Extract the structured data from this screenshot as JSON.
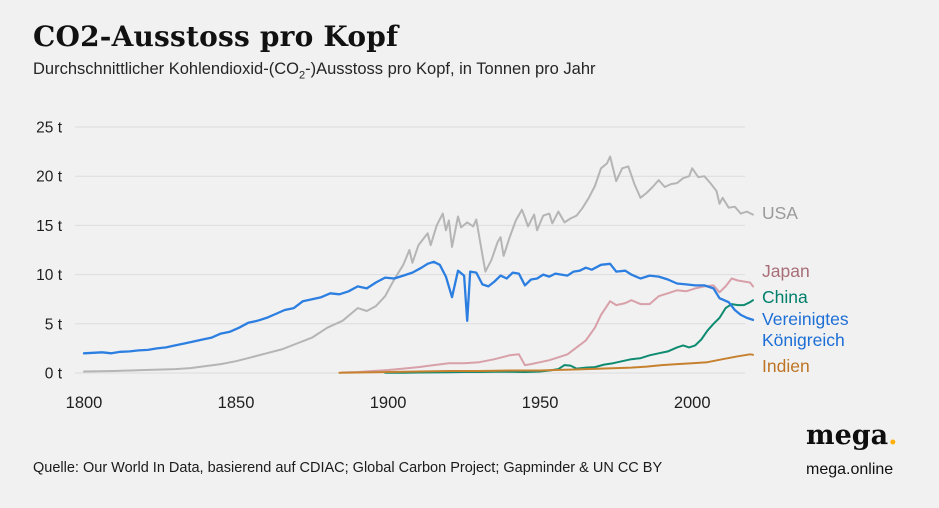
{
  "page": {
    "title": "CO2-Ausstoss pro Kopf",
    "subtitle_prefix": "Durchschnittlicher Kohlendioxid-(CO",
    "subtitle_sub": "2",
    "subtitle_suffix": "-)Ausstoss pro Kopf, in Tonnen pro Jahr",
    "source": "Quelle: Our World In Data, basierend auf CDIAC; Global Carbon Project; Gapminder & UN CC BY",
    "brand": {
      "logo_text": "mega",
      "logo_dot": ".",
      "site": "mega.online",
      "dot_color": "#ffb005"
    }
  },
  "chart_data": {
    "type": "line",
    "title": "CO2-Ausstoss pro Kopf",
    "subtitle": "Durchschnittlicher Kohlendioxid-(CO2-)Ausstoss pro Kopf, in Tonnen pro Jahr",
    "xlabel": "",
    "ylabel": "",
    "xlim": [
      1800,
      2020
    ],
    "ylim": [
      0,
      25
    ],
    "grid": true,
    "legend_position": "right",
    "background": "#f1f1f2",
    "grid_color": "#dcdcdc",
    "yticks": [
      {
        "value": 0,
        "label": "0 t"
      },
      {
        "value": 5,
        "label": "5 t"
      },
      {
        "value": 10,
        "label": "10 t"
      },
      {
        "value": 15,
        "label": "15 t"
      },
      {
        "value": 20,
        "label": "20 t"
      },
      {
        "value": 25,
        "label": "25 t"
      }
    ],
    "xticks": [
      {
        "value": 1800,
        "label": "1800"
      },
      {
        "value": 1850,
        "label": "1850"
      },
      {
        "value": 1900,
        "label": "1900"
      },
      {
        "value": 1950,
        "label": "1950"
      },
      {
        "value": 2000,
        "label": "2000"
      }
    ],
    "series": [
      {
        "name": "USA",
        "line_color": "#b5b5b5",
        "label_color": "#9a9a9a",
        "width": 2,
        "points": [
          [
            1800,
            0.15
          ],
          [
            1810,
            0.2
          ],
          [
            1820,
            0.3
          ],
          [
            1830,
            0.4
          ],
          [
            1835,
            0.5
          ],
          [
            1840,
            0.7
          ],
          [
            1845,
            0.9
          ],
          [
            1850,
            1.2
          ],
          [
            1855,
            1.6
          ],
          [
            1860,
            2.0
          ],
          [
            1865,
            2.4
          ],
          [
            1870,
            3.0
          ],
          [
            1875,
            3.6
          ],
          [
            1880,
            4.6
          ],
          [
            1885,
            5.3
          ],
          [
            1890,
            6.6
          ],
          [
            1893,
            6.3
          ],
          [
            1896,
            6.8
          ],
          [
            1899,
            7.8
          ],
          [
            1902,
            9.5
          ],
          [
            1905,
            11.0
          ],
          [
            1907,
            12.5
          ],
          [
            1908,
            11.2
          ],
          [
            1910,
            13.0
          ],
          [
            1913,
            14.2
          ],
          [
            1914,
            13.0
          ],
          [
            1916,
            15.0
          ],
          [
            1918,
            16.2
          ],
          [
            1919,
            14.5
          ],
          [
            1920,
            15.5
          ],
          [
            1921,
            12.8
          ],
          [
            1923,
            15.9
          ],
          [
            1924,
            14.8
          ],
          [
            1926,
            15.3
          ],
          [
            1928,
            14.9
          ],
          [
            1929,
            15.6
          ],
          [
            1931,
            12.0
          ],
          [
            1932,
            10.3
          ],
          [
            1934,
            11.5
          ],
          [
            1936,
            13.3
          ],
          [
            1937,
            13.8
          ],
          [
            1938,
            11.9
          ],
          [
            1940,
            13.8
          ],
          [
            1942,
            15.5
          ],
          [
            1944,
            16.6
          ],
          [
            1945,
            15.8
          ],
          [
            1946,
            14.9
          ],
          [
            1948,
            16.1
          ],
          [
            1949,
            14.5
          ],
          [
            1951,
            16.0
          ],
          [
            1953,
            16.2
          ],
          [
            1954,
            15.2
          ],
          [
            1956,
            16.4
          ],
          [
            1958,
            15.3
          ],
          [
            1960,
            15.7
          ],
          [
            1962,
            16.0
          ],
          [
            1964,
            16.8
          ],
          [
            1966,
            17.8
          ],
          [
            1968,
            19.0
          ],
          [
            1970,
            20.8
          ],
          [
            1972,
            21.3
          ],
          [
            1973,
            22.0
          ],
          [
            1975,
            19.5
          ],
          [
            1977,
            20.8
          ],
          [
            1979,
            21.0
          ],
          [
            1981,
            19.2
          ],
          [
            1983,
            17.8
          ],
          [
            1985,
            18.3
          ],
          [
            1987,
            18.9
          ],
          [
            1989,
            19.6
          ],
          [
            1991,
            18.9
          ],
          [
            1993,
            19.2
          ],
          [
            1995,
            19.3
          ],
          [
            1997,
            19.8
          ],
          [
            1999,
            20.0
          ],
          [
            2000,
            20.8
          ],
          [
            2002,
            19.9
          ],
          [
            2004,
            20.0
          ],
          [
            2006,
            19.3
          ],
          [
            2008,
            18.5
          ],
          [
            2009,
            17.2
          ],
          [
            2010,
            17.8
          ],
          [
            2012,
            16.8
          ],
          [
            2014,
            16.9
          ],
          [
            2016,
            16.2
          ],
          [
            2018,
            16.4
          ],
          [
            2020,
            16.1
          ]
        ]
      },
      {
        "name": "Japan",
        "line_color": "#d8a0a8",
        "label_color": "#a86f78",
        "width": 2,
        "points": [
          [
            1885,
            0.05
          ],
          [
            1890,
            0.1
          ],
          [
            1895,
            0.2
          ],
          [
            1900,
            0.3
          ],
          [
            1905,
            0.45
          ],
          [
            1910,
            0.6
          ],
          [
            1915,
            0.8
          ],
          [
            1920,
            1.0
          ],
          [
            1925,
            1.0
          ],
          [
            1930,
            1.1
          ],
          [
            1935,
            1.4
          ],
          [
            1940,
            1.8
          ],
          [
            1943,
            1.9
          ],
          [
            1945,
            0.8
          ],
          [
            1947,
            0.9
          ],
          [
            1950,
            1.1
          ],
          [
            1953,
            1.3
          ],
          [
            1956,
            1.6
          ],
          [
            1959,
            1.9
          ],
          [
            1962,
            2.6
          ],
          [
            1965,
            3.3
          ],
          [
            1968,
            4.6
          ],
          [
            1970,
            5.9
          ],
          [
            1973,
            7.3
          ],
          [
            1975,
            6.9
          ],
          [
            1978,
            7.1
          ],
          [
            1980,
            7.4
          ],
          [
            1983,
            7.0
          ],
          [
            1986,
            7.0
          ],
          [
            1989,
            7.8
          ],
          [
            1992,
            8.1
          ],
          [
            1995,
            8.4
          ],
          [
            1998,
            8.3
          ],
          [
            2001,
            8.6
          ],
          [
            2004,
            8.8
          ],
          [
            2007,
            8.9
          ],
          [
            2009,
            8.2
          ],
          [
            2011,
            8.8
          ],
          [
            2013,
            9.6
          ],
          [
            2015,
            9.4
          ],
          [
            2017,
            9.3
          ],
          [
            2019,
            9.2
          ],
          [
            2020,
            8.8
          ]
        ]
      },
      {
        "name": "China",
        "line_color": "#0e8b70",
        "label_color": "#00806a",
        "width": 2,
        "points": [
          [
            1899,
            0.02
          ],
          [
            1905,
            0.03
          ],
          [
            1910,
            0.05
          ],
          [
            1915,
            0.06
          ],
          [
            1920,
            0.08
          ],
          [
            1925,
            0.1
          ],
          [
            1930,
            0.1
          ],
          [
            1935,
            0.12
          ],
          [
            1940,
            0.12
          ],
          [
            1945,
            0.1
          ],
          [
            1950,
            0.15
          ],
          [
            1953,
            0.25
          ],
          [
            1956,
            0.4
          ],
          [
            1958,
            0.8
          ],
          [
            1960,
            0.75
          ],
          [
            1962,
            0.45
          ],
          [
            1965,
            0.55
          ],
          [
            1968,
            0.6
          ],
          [
            1971,
            0.85
          ],
          [
            1974,
            1.0
          ],
          [
            1977,
            1.2
          ],
          [
            1980,
            1.4
          ],
          [
            1983,
            1.5
          ],
          [
            1986,
            1.8
          ],
          [
            1989,
            2.0
          ],
          [
            1992,
            2.2
          ],
          [
            1995,
            2.6
          ],
          [
            1997,
            2.8
          ],
          [
            1999,
            2.6
          ],
          [
            2001,
            2.8
          ],
          [
            2003,
            3.4
          ],
          [
            2005,
            4.3
          ],
          [
            2007,
            5.0
          ],
          [
            2009,
            5.6
          ],
          [
            2011,
            6.6
          ],
          [
            2013,
            7.0
          ],
          [
            2015,
            6.9
          ],
          [
            2017,
            6.9
          ],
          [
            2019,
            7.2
          ],
          [
            2020,
            7.4
          ]
        ]
      },
      {
        "name": "Vereinigtes Königreich",
        "line_color": "#2c7fe0",
        "label_color": "#1d6fd6",
        "width": 2.3,
        "points": [
          [
            1800,
            2.0
          ],
          [
            1803,
            2.05
          ],
          [
            1806,
            2.1
          ],
          [
            1809,
            2.0
          ],
          [
            1812,
            2.15
          ],
          [
            1815,
            2.2
          ],
          [
            1818,
            2.3
          ],
          [
            1821,
            2.35
          ],
          [
            1824,
            2.5
          ],
          [
            1827,
            2.6
          ],
          [
            1830,
            2.8
          ],
          [
            1833,
            3.0
          ],
          [
            1836,
            3.2
          ],
          [
            1839,
            3.4
          ],
          [
            1842,
            3.6
          ],
          [
            1845,
            4.0
          ],
          [
            1848,
            4.2
          ],
          [
            1851,
            4.6
          ],
          [
            1854,
            5.1
          ],
          [
            1857,
            5.3
          ],
          [
            1860,
            5.6
          ],
          [
            1863,
            6.0
          ],
          [
            1866,
            6.4
          ],
          [
            1869,
            6.6
          ],
          [
            1872,
            7.3
          ],
          [
            1875,
            7.5
          ],
          [
            1878,
            7.7
          ],
          [
            1881,
            8.1
          ],
          [
            1884,
            8.0
          ],
          [
            1887,
            8.3
          ],
          [
            1890,
            8.8
          ],
          [
            1893,
            8.6
          ],
          [
            1896,
            9.2
          ],
          [
            1899,
            9.7
          ],
          [
            1902,
            9.6
          ],
          [
            1905,
            9.9
          ],
          [
            1908,
            10.2
          ],
          [
            1911,
            10.7
          ],
          [
            1913,
            11.1
          ],
          [
            1915,
            11.3
          ],
          [
            1917,
            11.0
          ],
          [
            1919,
            9.8
          ],
          [
            1921,
            7.7
          ],
          [
            1923,
            10.4
          ],
          [
            1925,
            9.9
          ],
          [
            1926,
            5.3
          ],
          [
            1927,
            10.3
          ],
          [
            1929,
            10.2
          ],
          [
            1931,
            9.0
          ],
          [
            1933,
            8.8
          ],
          [
            1935,
            9.3
          ],
          [
            1937,
            9.9
          ],
          [
            1939,
            9.6
          ],
          [
            1941,
            10.2
          ],
          [
            1943,
            10.1
          ],
          [
            1945,
            8.9
          ],
          [
            1947,
            9.5
          ],
          [
            1949,
            9.6
          ],
          [
            1951,
            10.0
          ],
          [
            1953,
            9.8
          ],
          [
            1955,
            10.1
          ],
          [
            1957,
            10.0
          ],
          [
            1959,
            9.9
          ],
          [
            1961,
            10.3
          ],
          [
            1963,
            10.4
          ],
          [
            1965,
            10.7
          ],
          [
            1967,
            10.5
          ],
          [
            1970,
            11.0
          ],
          [
            1973,
            11.1
          ],
          [
            1975,
            10.3
          ],
          [
            1978,
            10.4
          ],
          [
            1980,
            10.0
          ],
          [
            1983,
            9.6
          ],
          [
            1986,
            9.9
          ],
          [
            1989,
            9.8
          ],
          [
            1992,
            9.5
          ],
          [
            1995,
            9.1
          ],
          [
            1998,
            9.0
          ],
          [
            2001,
            8.9
          ],
          [
            2004,
            8.9
          ],
          [
            2007,
            8.6
          ],
          [
            2009,
            7.6
          ],
          [
            2012,
            7.2
          ],
          [
            2014,
            6.4
          ],
          [
            2016,
            5.9
          ],
          [
            2018,
            5.6
          ],
          [
            2020,
            5.4
          ]
        ]
      },
      {
        "name": "Indien",
        "line_color": "#c6812f",
        "label_color": "#bd7524",
        "width": 2,
        "points": [
          [
            1884,
            0.02
          ],
          [
            1890,
            0.05
          ],
          [
            1895,
            0.07
          ],
          [
            1900,
            0.1
          ],
          [
            1910,
            0.15
          ],
          [
            1920,
            0.2
          ],
          [
            1930,
            0.2
          ],
          [
            1940,
            0.25
          ],
          [
            1950,
            0.25
          ],
          [
            1955,
            0.3
          ],
          [
            1960,
            0.35
          ],
          [
            1965,
            0.4
          ],
          [
            1970,
            0.45
          ],
          [
            1975,
            0.5
          ],
          [
            1980,
            0.55
          ],
          [
            1985,
            0.65
          ],
          [
            1990,
            0.8
          ],
          [
            1995,
            0.9
          ],
          [
            2000,
            1.0
          ],
          [
            2005,
            1.1
          ],
          [
            2010,
            1.4
          ],
          [
            2015,
            1.7
          ],
          [
            2019,
            1.9
          ],
          [
            2020,
            1.85
          ]
        ]
      }
    ]
  }
}
